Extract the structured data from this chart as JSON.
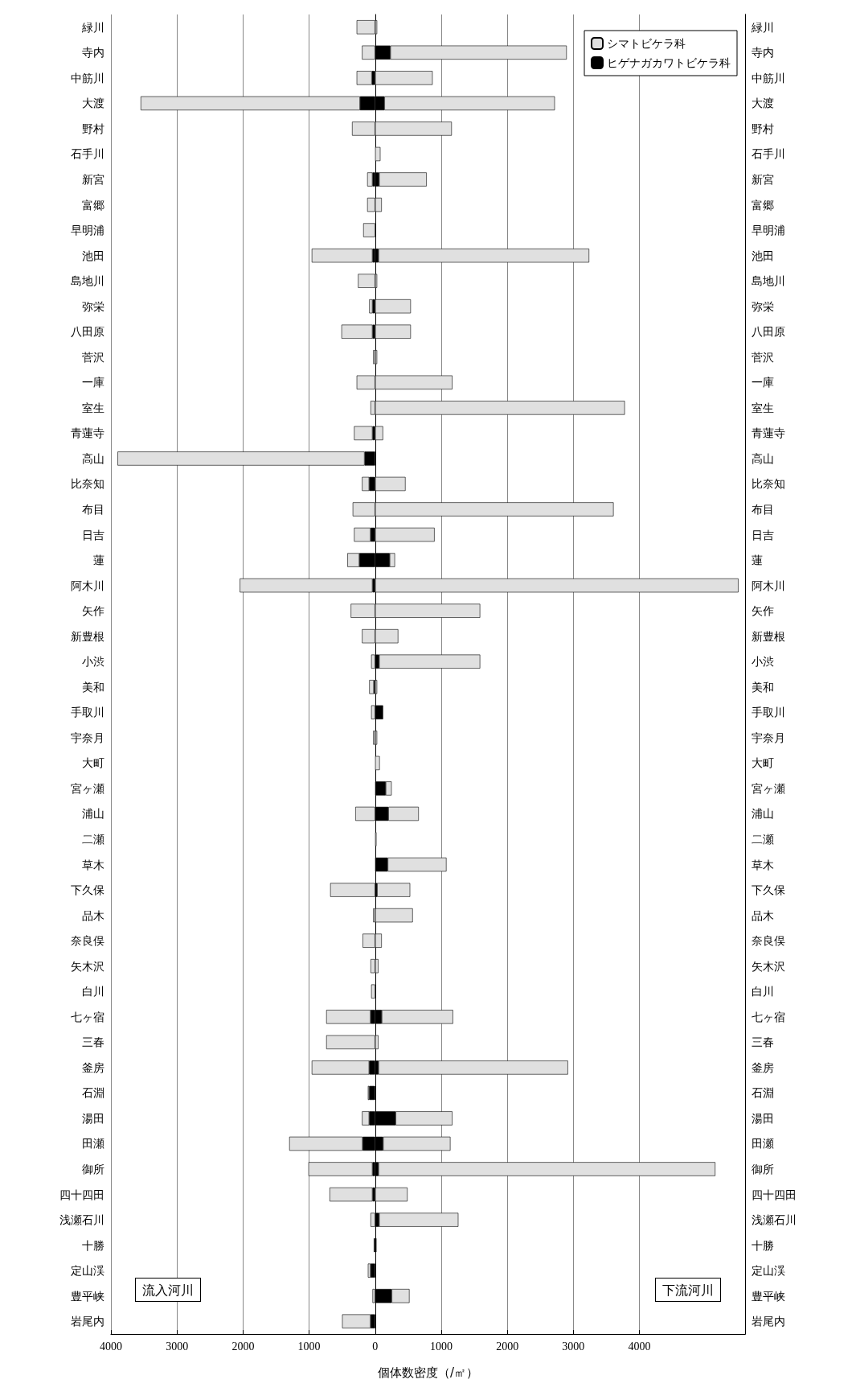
{
  "chart_data": {
    "type": "bar",
    "orientation": "horizontal",
    "stacked": true,
    "xlabel": "個体数密度（/㎡）",
    "categories": [
      "緑川",
      "寺内",
      "中筋川",
      "大渡",
      "野村",
      "石手川",
      "新宮",
      "富郷",
      "早明浦",
      "池田",
      "島地川",
      "弥栄",
      "八田原",
      "菅沢",
      "一庫",
      "室生",
      "青蓮寺",
      "高山",
      "比奈知",
      "布目",
      "日吉",
      "蓮",
      "阿木川",
      "矢作",
      "新豊根",
      "小渋",
      "美和",
      "手取川",
      "宇奈月",
      "大町",
      "宮ヶ瀬",
      "浦山",
      "二瀬",
      "草木",
      "下久保",
      "品木",
      "奈良俣",
      "矢木沢",
      "白川",
      "七ヶ宿",
      "三春",
      "釜房",
      "石淵",
      "湯田",
      "田瀬",
      "御所",
      "四十四田",
      "浅瀬石川",
      "十勝",
      "定山渓",
      "豊平峡",
      "岩尾内"
    ],
    "series": [
      {
        "name": "ヒゲナガカワトビケラ科",
        "color": "#000000",
        "values": [
          null,
          null,
          -50,
          -230,
          null,
          null,
          -40,
          null,
          null,
          -40,
          null,
          -40,
          -40,
          null,
          null,
          null,
          -40,
          -160,
          -90,
          null,
          -70,
          -240,
          -40,
          null,
          null,
          null,
          -20,
          null,
          null,
          null,
          null,
          null,
          null,
          null,
          null,
          null,
          null,
          null,
          null,
          -70,
          null,
          -90,
          -90,
          -90,
          -190,
          -40,
          -40,
          null,
          -20,
          -70,
          null,
          -70
        ]
      },
      {
        "name": "シマトビケラ科",
        "color": "#e0e0e0",
        "values": [
          -280,
          -200,
          -230,
          -3320,
          -350,
          null,
          -80,
          -120,
          -180,
          -920,
          -260,
          -50,
          -470,
          -30,
          -280,
          -70,
          -280,
          -3740,
          -110,
          -340,
          -250,
          -180,
          -2010,
          -370,
          -200,
          -60,
          -70,
          -60,
          -30,
          null,
          null,
          -300,
          null,
          null,
          -680,
          -30,
          -190,
          -70,
          -60,
          -670,
          -740,
          -870,
          -20,
          -110,
          -1110,
          -970,
          -650,
          -70,
          null,
          -40,
          -40,
          -430
        ]
      },
      {
        "color": "#000000",
        "values": [
          null,
          230,
          null,
          140,
          null,
          null,
          60,
          null,
          null,
          50,
          null,
          null,
          null,
          null,
          null,
          null,
          null,
          null,
          null,
          null,
          null,
          220,
          null,
          null,
          null,
          60,
          null,
          120,
          null,
          null,
          160,
          200,
          null,
          190,
          30,
          null,
          null,
          null,
          null,
          100,
          null,
          50,
          null,
          310,
          120,
          50,
          null,
          60,
          20,
          null,
          250,
          null
        ]
      },
      {
        "color": "#e0e0e0",
        "values": [
          30,
          2670,
          870,
          2580,
          1160,
          80,
          720,
          100,
          null,
          3190,
          30,
          540,
          540,
          30,
          1170,
          3780,
          120,
          null,
          460,
          3610,
          900,
          80,
          5500,
          1590,
          350,
          1530,
          30,
          null,
          30,
          70,
          90,
          460,
          20,
          890,
          500,
          570,
          100,
          50,
          null,
          1080,
          50,
          2870,
          null,
          860,
          1020,
          5100,
          490,
          1200,
          null,
          null,
          270,
          null
        ]
      }
    ],
    "xlim": [
      -4000,
      5600
    ],
    "xticks": [
      {
        "value": -4000,
        "label": "4000"
      },
      {
        "value": -3000,
        "label": "3000"
      },
      {
        "value": -2000,
        "label": "2000"
      },
      {
        "value": -1000,
        "label": "1000"
      },
      0,
      1000,
      2000,
      3000,
      4000
    ],
    "grid": "x",
    "legend": "top right",
    "annotations": [
      "流入河川",
      "下流河川"
    ]
  }
}
